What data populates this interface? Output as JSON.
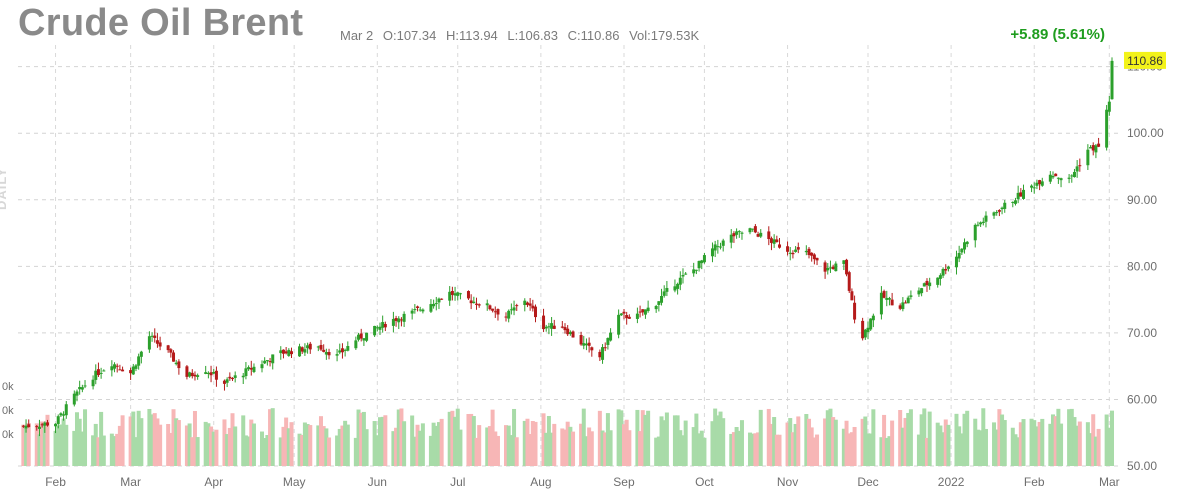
{
  "header": {
    "title": "Crude Oil Brent",
    "date": "Mar 2",
    "open": "O:107.34",
    "high": "H:113.94",
    "low": "L:106.83",
    "close": "C:110.86",
    "volume": "Vol:179.53K",
    "change": "+5.89 (5.61%)",
    "period_label": "DAILY"
  },
  "colors": {
    "up": "#2ca02c",
    "down": "#b51a1a",
    "vol_up": "#a8dba8",
    "vol_down": "#f7b6b6",
    "last_price_bg": "#f3f31a",
    "change": "#1f9d1f"
  },
  "chart_data": {
    "type": "candlestick",
    "ylim": [
      50,
      114
    ],
    "y_ticks": [
      "50.00",
      "60.00",
      "70.00",
      "80.00",
      "90.00",
      "100.00",
      "110.00"
    ],
    "x_ticks": [
      "Feb",
      "Mar",
      "Apr",
      "May",
      "Jun",
      "Jul",
      "Aug",
      "Sep",
      "Oct",
      "Nov",
      "Dec",
      "2022",
      "Feb",
      "Mar"
    ],
    "volume_ticks": [
      "0k",
      "0k",
      "0k"
    ],
    "last_price": "110.86",
    "grid": true,
    "close_points": [
      [
        "2021-01-20",
        56.0
      ],
      [
        "2021-02-01",
        56.5
      ],
      [
        "2021-02-08",
        60.5
      ],
      [
        "2021-02-15",
        63.5
      ],
      [
        "2021-02-22",
        65.5
      ],
      [
        "2021-03-01",
        64.0
      ],
      [
        "2021-03-08",
        69.5
      ],
      [
        "2021-03-15",
        67.0
      ],
      [
        "2021-03-22",
        63.5
      ],
      [
        "2021-03-29",
        64.5
      ],
      [
        "2021-04-05",
        62.5
      ],
      [
        "2021-04-12",
        64.0
      ],
      [
        "2021-04-19",
        65.5
      ],
      [
        "2021-04-26",
        67.0
      ],
      [
        "2021-05-03",
        67.5
      ],
      [
        "2021-05-10",
        68.0
      ],
      [
        "2021-05-17",
        66.5
      ],
      [
        "2021-05-24",
        69.0
      ],
      [
        "2021-05-31",
        70.5
      ],
      [
        "2021-06-07",
        72.0
      ],
      [
        "2021-06-14",
        73.0
      ],
      [
        "2021-06-21",
        74.5
      ],
      [
        "2021-06-28",
        76.0
      ],
      [
        "2021-07-05",
        75.0
      ],
      [
        "2021-07-12",
        74.0
      ],
      [
        "2021-07-19",
        72.5
      ],
      [
        "2021-07-26",
        75.0
      ],
      [
        "2021-08-02",
        71.0
      ],
      [
        "2021-08-09",
        71.0
      ],
      [
        "2021-08-16",
        68.5
      ],
      [
        "2021-08-23",
        66.5
      ],
      [
        "2021-08-30",
        72.5
      ],
      [
        "2021-09-06",
        72.5
      ],
      [
        "2021-09-13",
        74.5
      ],
      [
        "2021-09-20",
        77.5
      ],
      [
        "2021-09-27",
        79.5
      ],
      [
        "2021-10-04",
        82.5
      ],
      [
        "2021-10-11",
        84.5
      ],
      [
        "2021-10-18",
        85.5
      ],
      [
        "2021-10-25",
        84.0
      ],
      [
        "2021-11-01",
        82.5
      ],
      [
        "2021-11-08",
        82.0
      ],
      [
        "2021-11-15",
        79.5
      ],
      [
        "2021-11-22",
        80.5
      ],
      [
        "2021-11-26",
        72.5
      ],
      [
        "2021-11-29",
        69.5
      ],
      [
        "2021-12-06",
        75.5
      ],
      [
        "2021-12-13",
        74.0
      ],
      [
        "2021-12-20",
        76.5
      ],
      [
        "2021-12-27",
        78.5
      ],
      [
        "2022-01-03",
        81.5
      ],
      [
        "2022-01-10",
        86.0
      ],
      [
        "2022-01-17",
        88.0
      ],
      [
        "2022-01-24",
        90.0
      ],
      [
        "2022-01-31",
        92.0
      ],
      [
        "2022-02-07",
        94.0
      ],
      [
        "2022-02-14",
        93.0
      ],
      [
        "2022-02-21",
        97.5
      ],
      [
        "2022-02-25",
        98.0
      ],
      [
        "2022-03-01",
        105.0
      ],
      [
        "2022-03-02",
        110.86
      ]
    ]
  }
}
